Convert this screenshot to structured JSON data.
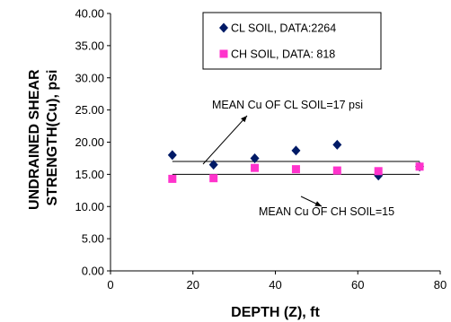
{
  "chart_data": {
    "type": "scatter",
    "xlabel": "DEPTH (Z), ft",
    "ylabel_lines": [
      "UNDRAINED SHEAR",
      "STRENGTH(Cu), psi"
    ],
    "xlim": [
      0,
      80
    ],
    "ylim": [
      0,
      40
    ],
    "x_ticks": [
      "0",
      "20",
      "40",
      "60",
      "80"
    ],
    "y_ticks": [
      "0.00",
      "5.00",
      "10.00",
      "15.00",
      "20.00",
      "25.00",
      "30.00",
      "35.00",
      "40.00"
    ],
    "grid": false,
    "legend_position": "top-right",
    "series": [
      {
        "name": "CL SOIL, DATA:2264",
        "marker": "diamond",
        "color": "#001a66",
        "points": [
          {
            "x": 15,
            "y": 18.0
          },
          {
            "x": 25,
            "y": 16.5
          },
          {
            "x": 35,
            "y": 17.5
          },
          {
            "x": 45,
            "y": 18.7
          },
          {
            "x": 55,
            "y": 19.6
          },
          {
            "x": 65,
            "y": 14.8
          },
          {
            "x": 75,
            "y": 16.2
          }
        ]
      },
      {
        "name": "CH SOIL, DATA: 818",
        "marker": "square",
        "color": "#ff33cc",
        "points": [
          {
            "x": 15,
            "y": 14.3
          },
          {
            "x": 25,
            "y": 14.4
          },
          {
            "x": 35,
            "y": 16.0
          },
          {
            "x": 45,
            "y": 15.8
          },
          {
            "x": 55,
            "y": 15.6
          },
          {
            "x": 65,
            "y": 15.5
          },
          {
            "x": 75,
            "y": 16.2
          }
        ]
      }
    ],
    "mean_lines": [
      {
        "label": "MEAN Cu OF CL SOIL=17 psi",
        "y": 17,
        "x_start": 15,
        "x_end": 75
      },
      {
        "label": "MEAN Cu OF CH SOIL=15",
        "y": 15,
        "x_start": 15,
        "x_end": 75
      }
    ]
  }
}
